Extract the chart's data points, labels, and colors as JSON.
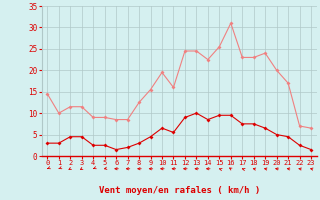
{
  "hours": [
    0,
    1,
    2,
    3,
    4,
    5,
    6,
    7,
    8,
    9,
    10,
    11,
    12,
    13,
    14,
    15,
    16,
    17,
    18,
    19,
    20,
    21,
    22,
    23
  ],
  "rafales": [
    14.5,
    10.0,
    11.5,
    11.5,
    9.0,
    9.0,
    8.5,
    8.5,
    12.5,
    15.5,
    19.5,
    16.0,
    24.5,
    24.5,
    22.5,
    25.5,
    31.0,
    23.0,
    23.0,
    24.0,
    20.0,
    17.0,
    7.0,
    6.5
  ],
  "moyen": [
    3.0,
    3.0,
    4.5,
    4.5,
    2.5,
    2.5,
    1.5,
    2.0,
    3.0,
    4.5,
    6.5,
    5.5,
    9.0,
    10.0,
    8.5,
    9.5,
    9.5,
    7.5,
    7.5,
    6.5,
    5.0,
    4.5,
    2.5,
    1.5
  ],
  "rafales_color": "#f08080",
  "moyen_color": "#dd0000",
  "bg_color": "#d5f0f0",
  "grid_color": "#b0c8c8",
  "xlabel": "Vent moyen/en rafales ( km/h )",
  "xlabel_color": "#dd0000",
  "tick_color": "#dd0000",
  "ytick_labels": [
    "0",
    "5",
    "10",
    "15",
    "20",
    "25",
    "30",
    "35"
  ],
  "ytick_vals": [
    0,
    5,
    10,
    15,
    20,
    25,
    30,
    35
  ],
  "ylim": [
    0,
    35
  ],
  "arrow_angles_deg": [
    215,
    215,
    205,
    205,
    215,
    230,
    270,
    270,
    270,
    275,
    270,
    270,
    270,
    270,
    270,
    320,
    335,
    320,
    305,
    300,
    290,
    295,
    300,
    305
  ]
}
